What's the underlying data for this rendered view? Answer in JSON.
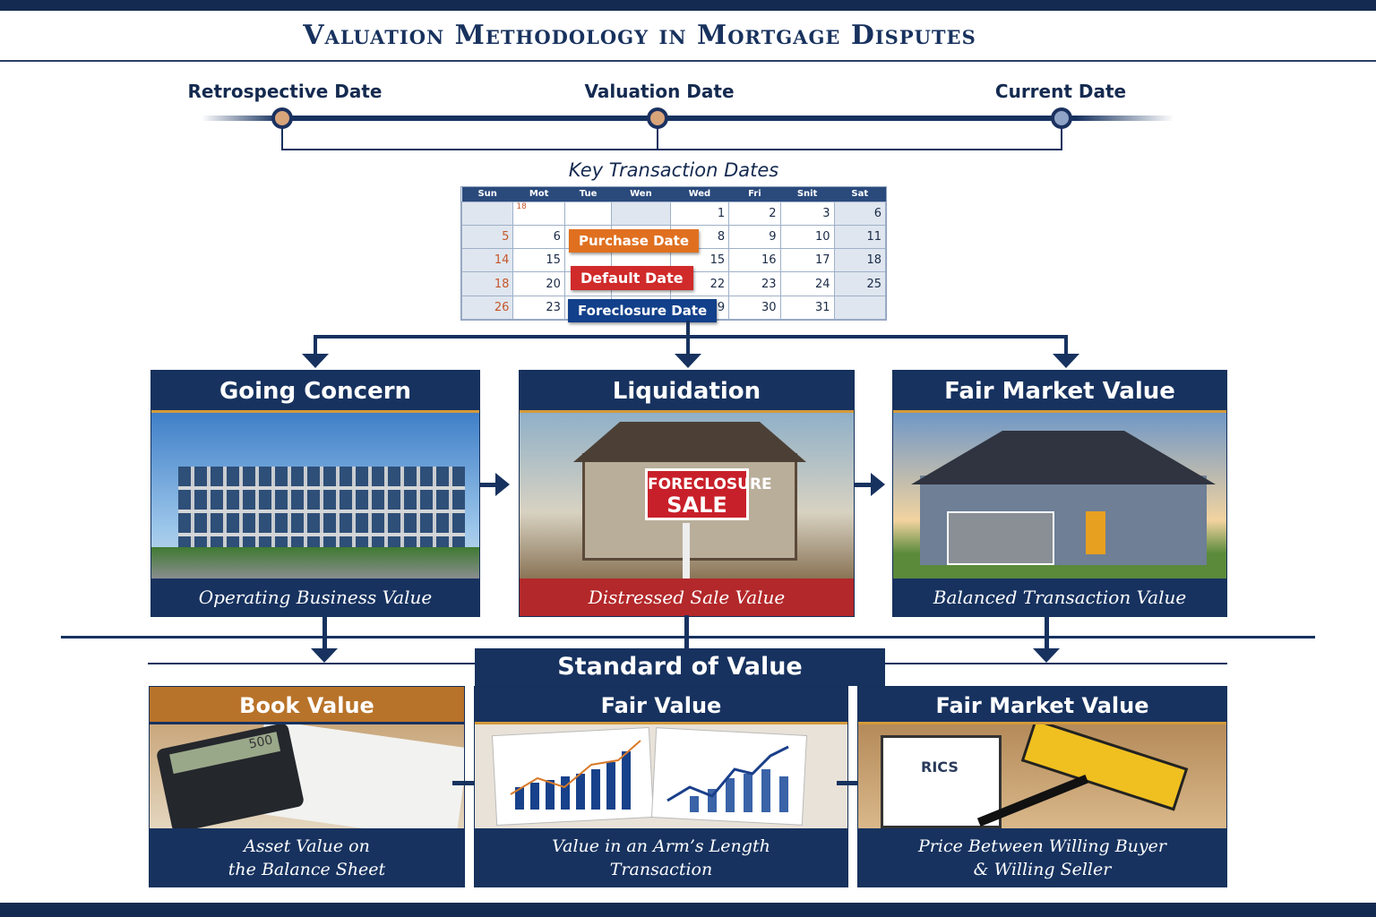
{
  "title": "Valuation Methodology in Mortgage Disputes",
  "timeline": {
    "points": [
      {
        "label": "Retrospective Date",
        "color": "#d8a47a"
      },
      {
        "label": "Valuation Date",
        "color": "#d8a47a"
      },
      {
        "label": "Current Date",
        "color": "#8ea3c6"
      }
    ]
  },
  "calendar": {
    "title": "Key Transaction Dates",
    "headers": [
      "Sun",
      "Mot",
      "Tue",
      "Wen",
      "Wed",
      "Fri",
      "Snit",
      "Sat"
    ],
    "rows": [
      [
        "",
        "18",
        "",
        "",
        "1",
        "2",
        "3",
        "6"
      ],
      [
        "5",
        "6",
        "",
        "",
        "8",
        "9",
        "10",
        "11"
      ],
      [
        "14",
        "15",
        "",
        "",
        "15",
        "16",
        "17",
        "18"
      ],
      [
        "18",
        "20",
        "",
        "",
        "22",
        "23",
        "24",
        "25"
      ],
      [
        "26",
        "23",
        "",
        "",
        "29",
        "30",
        "31",
        ""
      ]
    ],
    "tags": [
      {
        "label": "Purchase Date",
        "color": "#e07020"
      },
      {
        "label": "Default Date",
        "color": "#d02a2a"
      },
      {
        "label": "Foreclosure Date",
        "color": "#12408a"
      }
    ]
  },
  "premises": [
    {
      "title": "Going Concern",
      "caption": "Operating Business Value",
      "caption_color": "#17325f"
    },
    {
      "title": "Liquidation",
      "caption": "Distressed Sale Value",
      "caption_color": "#b3282a",
      "sign": [
        "FORECLOSURE",
        "SALE"
      ]
    },
    {
      "title": "Fair Market Value",
      "caption": "Balanced Transaction Value",
      "caption_color": "#17325f"
    }
  ],
  "standard": {
    "label": "Standard of Value"
  },
  "standards": [
    {
      "title": "Book Value",
      "caption": [
        "Asset Value on",
        "the Balance Sheet"
      ],
      "header_color": "#b8732a",
      "display": "500"
    },
    {
      "title": "Fair Value",
      "caption": [
        "Value in an Arm’s Length",
        "Transaction"
      ],
      "header_color": "#17325f"
    },
    {
      "title": "Fair Market Value",
      "caption": [
        "Price Between Willing Buyer",
        "& Willing Seller"
      ],
      "header_color": "#17325f",
      "logo": "RICS"
    }
  ]
}
